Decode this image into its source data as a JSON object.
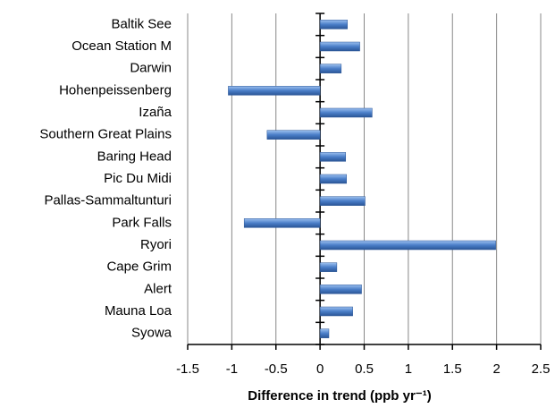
{
  "chart_data": {
    "type": "barh",
    "categories": [
      "Baltik See",
      "Ocean Station M",
      "Darwin",
      "Hohenpeissenberg",
      "Izaña",
      "Southern Great Plains",
      "Baring Head",
      "Pic Du Midi",
      "Pallas-Sammaltunturi",
      "Park Falls",
      "Ryori",
      "Cape Grim",
      "Alert",
      "Mauna Loa",
      "Syowa"
    ],
    "values": [
      0.31,
      0.45,
      0.24,
      -1.04,
      0.59,
      -0.6,
      0.29,
      0.3,
      0.51,
      -0.86,
      1.99,
      0.19,
      0.47,
      0.37,
      0.1
    ],
    "color": "#4a7ec8",
    "xlabel": "Difference in trend (ppb yr⁻¹)",
    "xlim": [
      -1.5,
      2.5
    ],
    "xticks": [
      -1.5,
      -1,
      -0.5,
      0,
      0.5,
      1,
      1.5,
      2,
      2.5
    ],
    "grid": true
  }
}
